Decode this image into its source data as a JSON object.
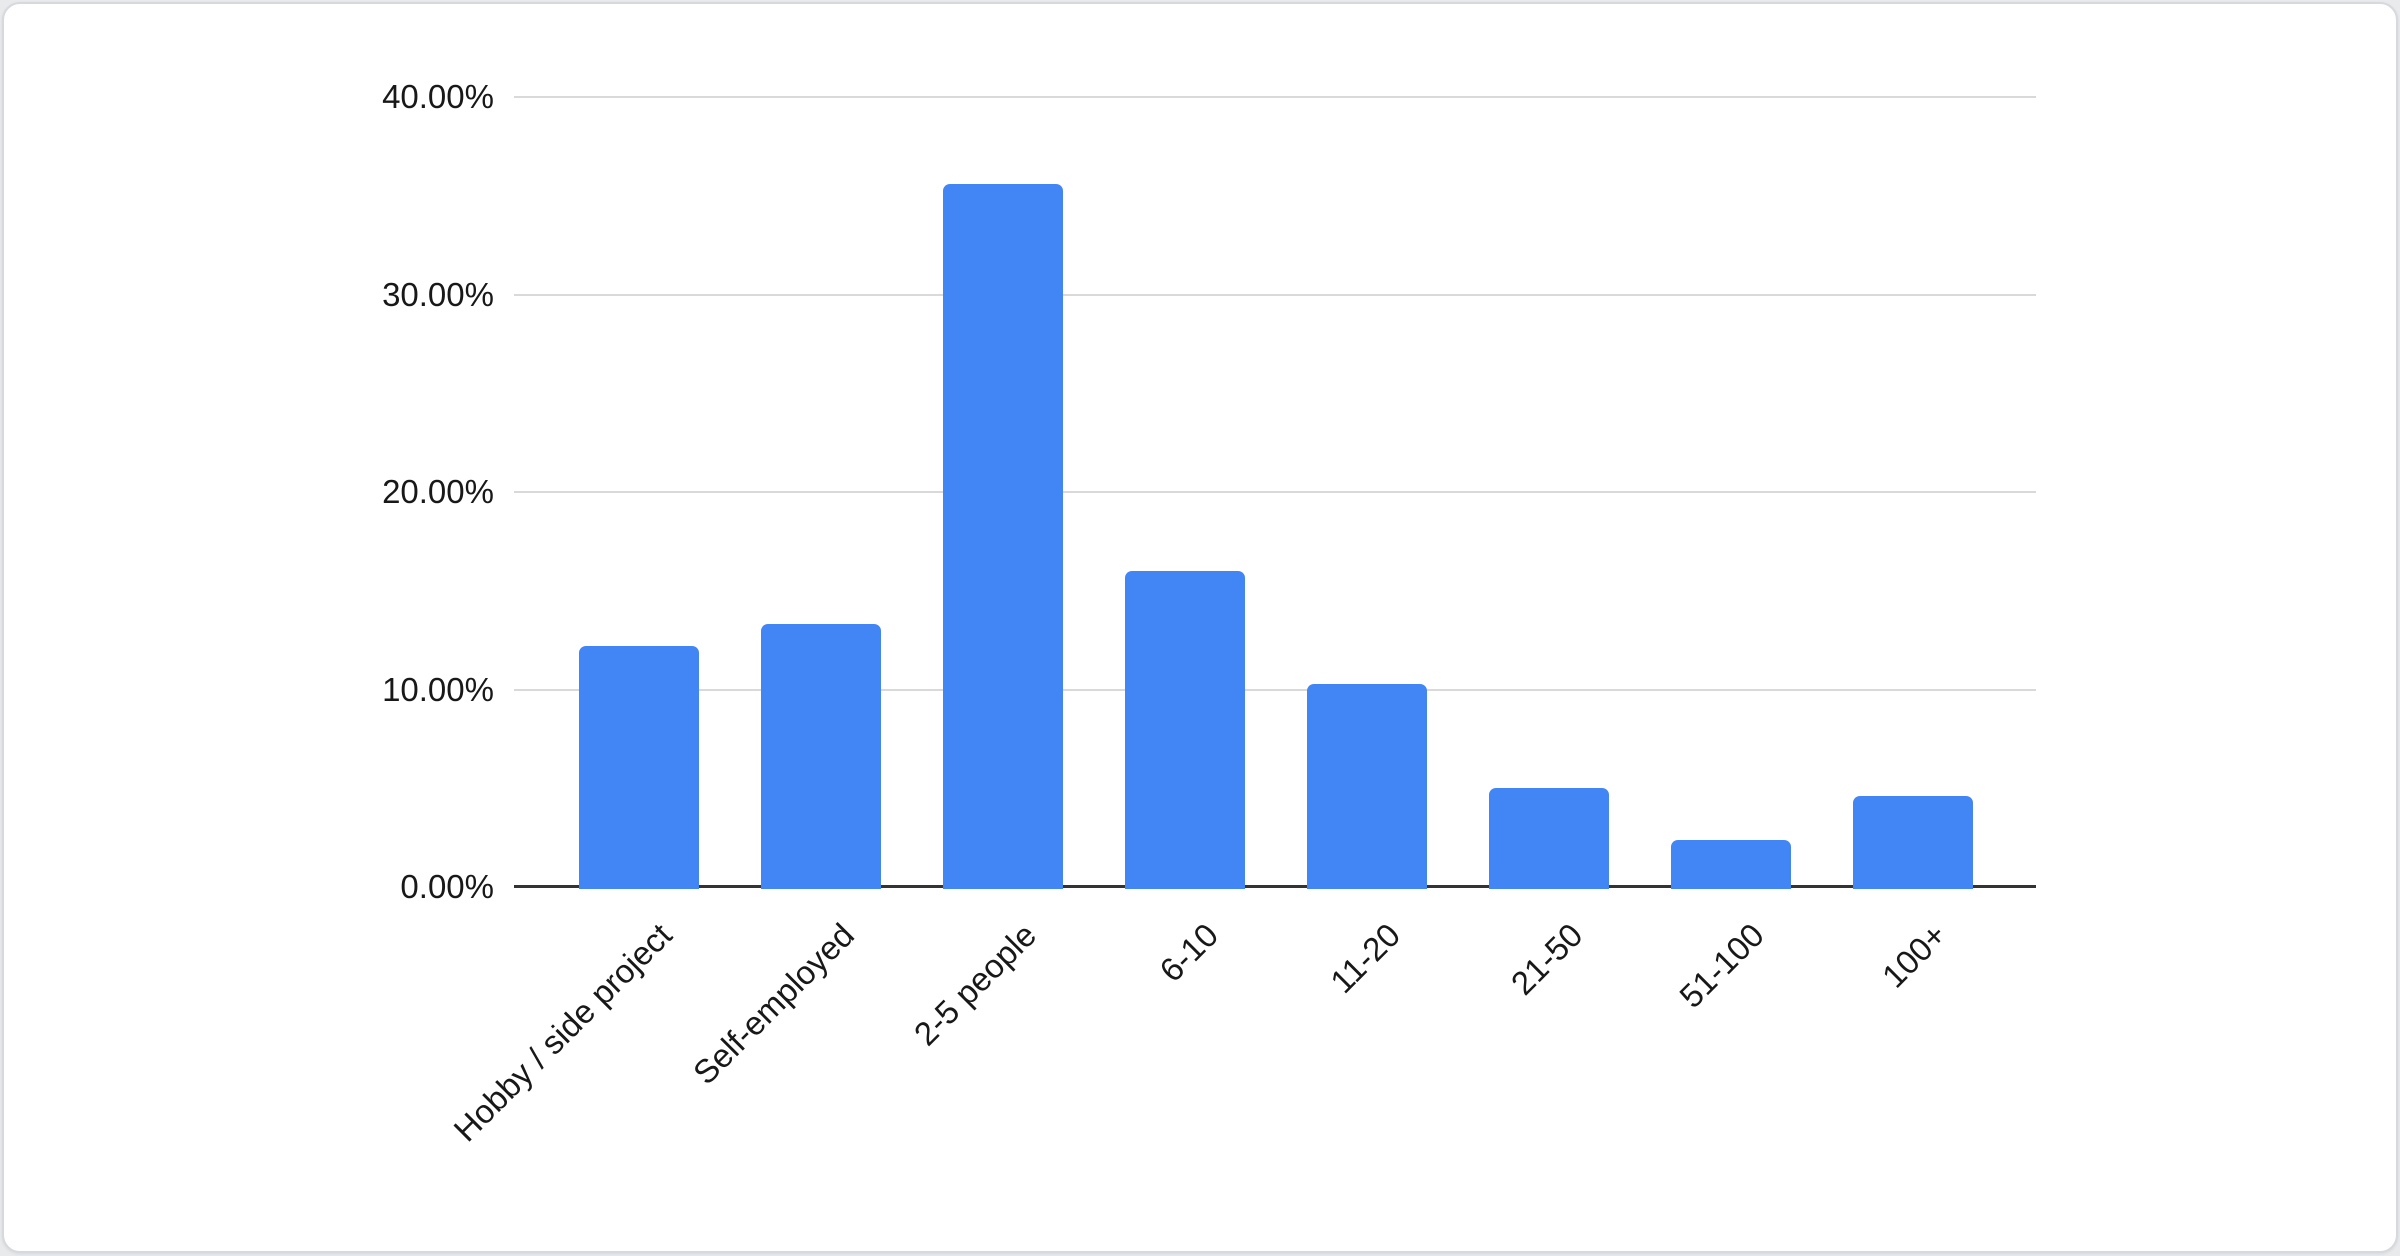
{
  "chart_data": {
    "type": "bar",
    "title": "",
    "xlabel": "",
    "ylabel": "",
    "categories": [
      "Hobby / side project",
      "Self-employed",
      "2-5 people",
      "6-10",
      "11-20",
      "21-50",
      "51-100",
      "100+"
    ],
    "values": [
      12.2,
      13.3,
      35.6,
      16.0,
      10.3,
      5.0,
      2.4,
      4.6
    ],
    "value_unit": "%",
    "ylim": [
      0,
      40
    ],
    "ytick_step": 10,
    "ytick_labels": [
      "0.00%",
      "10.00%",
      "20.00%",
      "30.00%",
      "40.00%"
    ],
    "grid": true,
    "legend_position": "none",
    "x_labels_rotation_deg": 45,
    "colors": {
      "bar": "#4285f4",
      "gridline": "#d9d9d9",
      "axis_line": "#333333",
      "label_text": "#181818",
      "card_background": "#ffffff",
      "card_border": "#d6d9dd",
      "page_background": "#e8eaec"
    }
  }
}
